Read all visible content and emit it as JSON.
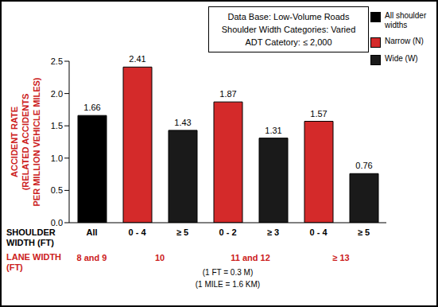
{
  "chart_data": {
    "type": "bar",
    "info_box": [
      "Data Base: Low-Volume Roads",
      "Shoulder Width Categories: Varied",
      "ADT Catetory: ≤ 2,000"
    ],
    "y_label": [
      "ACCIDENT RATE",
      "(RELATED ACCIDENTS",
      "PER MILLION VEHICLE MILES)"
    ],
    "x_label": "SHOULDER WIDTH (FT)",
    "categories": [
      "All",
      "0 - 4",
      "≥ 5",
      "0 - 2",
      "≥ 3",
      "0 - 4",
      "≥ 5"
    ],
    "series": [
      {
        "name": "All shoulder widths",
        "color": "#000000",
        "values": [
          1.66,
          null,
          null,
          null,
          null,
          null,
          null
        ]
      },
      {
        "name": "Narrow (N)",
        "color": "#d42a2a",
        "values": [
          null,
          2.41,
          null,
          1.87,
          null,
          1.57,
          null
        ]
      },
      {
        "name": "Wide (W)",
        "color": "#1a1a1a",
        "values": [
          null,
          null,
          1.43,
          null,
          1.31,
          null,
          0.76
        ]
      }
    ],
    "data_labels": true,
    "ylim": [
      0,
      2.5
    ],
    "yticks": [
      {
        "value": 0,
        "label": "0.0"
      },
      {
        "value": 0.5,
        "label": "0.5"
      },
      {
        "value": 1,
        "label": "1.0"
      },
      {
        "value": 1.5,
        "label": "1.5"
      },
      {
        "value": 2,
        "label": "2.0"
      },
      {
        "value": 2.5,
        "label": "2.5"
      }
    ],
    "grid": false,
    "lane_width_label": "LANE WIDTH (FT)",
    "lane_widths": [
      "8 and 9",
      "10",
      null,
      "11 and 12",
      null,
      "≥ 13",
      null
    ],
    "notes": [
      "(1 FT = 0.3 M)",
      "(1 MILE = 1.6 KM)"
    ]
  }
}
